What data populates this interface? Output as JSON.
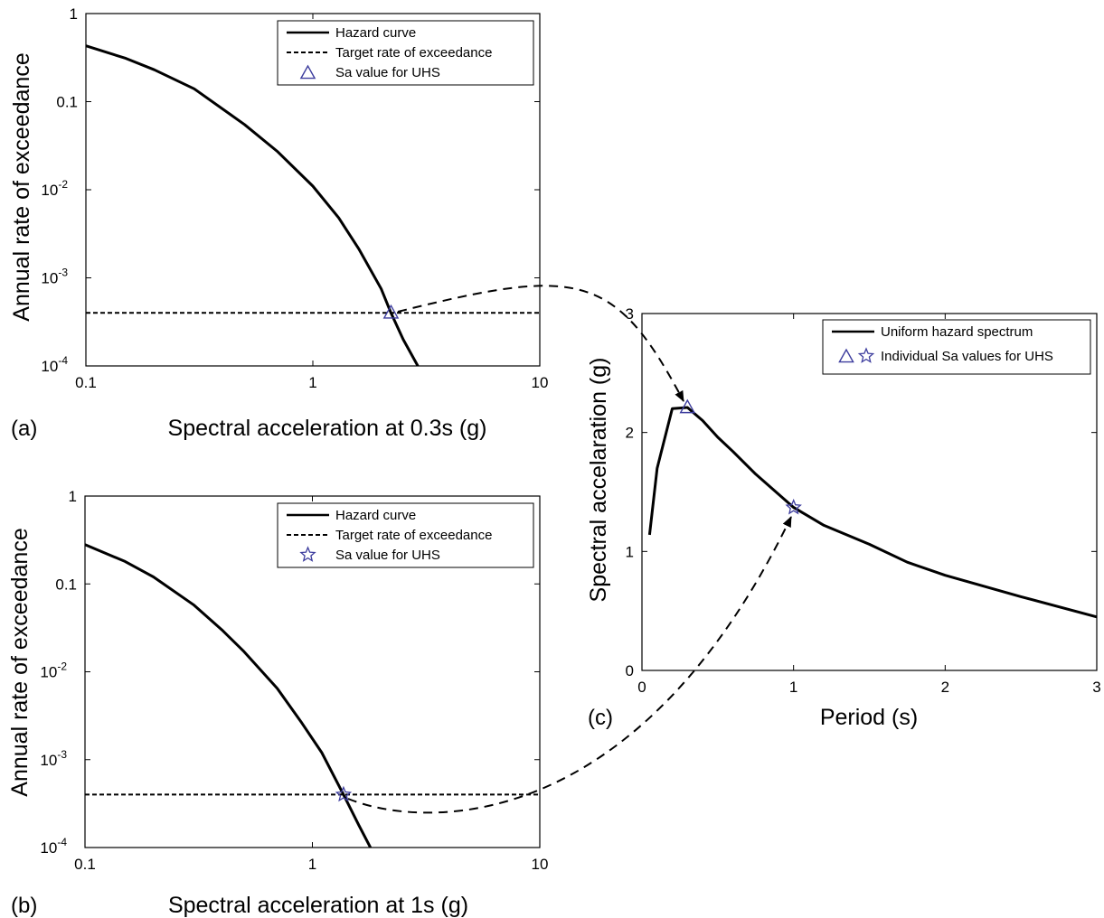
{
  "chart_data": [
    {
      "panel": "(a)",
      "type": "line",
      "xlabel": "Spectral acceleration at 0.3s (g)",
      "ylabel": "Annual rate of exceedance",
      "xscale": "log",
      "yscale": "log",
      "xlim": [
        0.1,
        10
      ],
      "ylim": [
        0.0001,
        1
      ],
      "x_ticks": [
        {
          "v": 0.1,
          "base": "0.1",
          "sup": ""
        },
        {
          "v": 1,
          "base": "1",
          "sup": ""
        },
        {
          "v": 10,
          "base": "10",
          "sup": ""
        }
      ],
      "y_ticks": [
        {
          "v": 1,
          "base": "1",
          "sup": ""
        },
        {
          "v": 0.1,
          "base": "0.1",
          "sup": ""
        },
        {
          "v": 0.01,
          "base": "10",
          "sup": "-2"
        },
        {
          "v": 0.001,
          "base": "10",
          "sup": "-3"
        },
        {
          "v": 0.0001,
          "base": "10",
          "sup": "-4"
        }
      ],
      "legend_position": "top-right",
      "legend": [
        {
          "label": "Hazard curve",
          "style": "solid"
        },
        {
          "label": "Target rate of exceedance",
          "style": "dashed"
        },
        {
          "label": "Sa value for UHS",
          "style": "triangle-marker"
        }
      ],
      "series": [
        {
          "name": "Hazard curve",
          "style": "solid",
          "x": [
            0.1,
            0.15,
            0.2,
            0.3,
            0.5,
            0.7,
            1.0,
            1.3,
            1.6,
            2.0,
            2.21,
            2.5,
            2.9
          ],
          "y": [
            0.43,
            0.31,
            0.23,
            0.14,
            0.055,
            0.027,
            0.011,
            0.0048,
            0.0021,
            0.00075,
            0.0004,
            0.0002,
            0.0001
          ]
        },
        {
          "name": "Target rate of exceedance",
          "style": "dashed",
          "x": [
            0.1,
            10
          ],
          "y": [
            0.0004,
            0.0004
          ]
        }
      ],
      "markers": [
        {
          "name": "Sa value for UHS",
          "shape": "triangle",
          "x": 2.21,
          "y": 0.0004,
          "color": "#3d3d9e"
        }
      ]
    },
    {
      "panel": "(b)",
      "type": "line",
      "xlabel": "Spectral acceleration at 1s (g)",
      "ylabel": "Annual rate of exceedance",
      "xscale": "log",
      "yscale": "log",
      "xlim": [
        0.1,
        10
      ],
      "ylim": [
        0.0001,
        1
      ],
      "x_ticks": [
        {
          "v": 0.1,
          "base": "0.1",
          "sup": ""
        },
        {
          "v": 1,
          "base": "1",
          "sup": ""
        },
        {
          "v": 10,
          "base": "10",
          "sup": ""
        }
      ],
      "y_ticks": [
        {
          "v": 1,
          "base": "1",
          "sup": ""
        },
        {
          "v": 0.1,
          "base": "0.1",
          "sup": ""
        },
        {
          "v": 0.01,
          "base": "10",
          "sup": "-2"
        },
        {
          "v": 0.001,
          "base": "10",
          "sup": "-3"
        },
        {
          "v": 0.0001,
          "base": "10",
          "sup": "-4"
        }
      ],
      "legend_position": "top-right",
      "legend": [
        {
          "label": "Hazard curve",
          "style": "solid"
        },
        {
          "label": "Target rate of exceedance",
          "style": "dashed"
        },
        {
          "label": "Sa value for UHS",
          "style": "star-marker"
        }
      ],
      "series": [
        {
          "name": "Hazard curve",
          "style": "solid",
          "x": [
            0.1,
            0.15,
            0.2,
            0.3,
            0.4,
            0.5,
            0.7,
            0.9,
            1.1,
            1.37,
            1.6,
            1.8
          ],
          "y": [
            0.28,
            0.18,
            0.12,
            0.058,
            0.03,
            0.017,
            0.0065,
            0.0026,
            0.0012,
            0.0004,
            0.00018,
            0.0001
          ]
        },
        {
          "name": "Target rate of exceedance",
          "style": "dashed",
          "x": [
            0.1,
            10
          ],
          "y": [
            0.0004,
            0.0004
          ]
        }
      ],
      "markers": [
        {
          "name": "Sa value for UHS",
          "shape": "star",
          "x": 1.37,
          "y": 0.0004,
          "color": "#3d3d9e"
        }
      ]
    },
    {
      "panel": "(c)",
      "type": "line",
      "xlabel": "Period (s)",
      "ylabel": "Spectral accelaration (g)",
      "xscale": "linear",
      "yscale": "linear",
      "xlim": [
        0,
        3
      ],
      "ylim": [
        0,
        3
      ],
      "x_ticks": [
        {
          "v": 0,
          "base": "0",
          "sup": ""
        },
        {
          "v": 1,
          "base": "1",
          "sup": ""
        },
        {
          "v": 2,
          "base": "2",
          "sup": ""
        },
        {
          "v": 3,
          "base": "3",
          "sup": ""
        }
      ],
      "y_ticks": [
        {
          "v": 0,
          "base": "0",
          "sup": ""
        },
        {
          "v": 1,
          "base": "1",
          "sup": ""
        },
        {
          "v": 2,
          "base": "2",
          "sup": ""
        },
        {
          "v": 3,
          "base": "3",
          "sup": ""
        }
      ],
      "legend_position": "top-right",
      "legend": [
        {
          "label": "Uniform hazard spectrum",
          "style": "solid"
        },
        {
          "label": "Individual Sa values for UHS",
          "style": "triangle-star-marker"
        }
      ],
      "series": [
        {
          "name": "Uniform hazard spectrum",
          "style": "solid",
          "x": [
            0.05,
            0.1,
            0.2,
            0.3,
            0.4,
            0.5,
            0.6,
            0.75,
            1.0,
            1.2,
            1.5,
            1.75,
            2.0,
            2.5,
            3.0
          ],
          "y": [
            1.14,
            1.7,
            2.2,
            2.21,
            2.1,
            1.96,
            1.84,
            1.65,
            1.37,
            1.22,
            1.06,
            0.91,
            0.8,
            0.62,
            0.45
          ]
        }
      ],
      "markers": [
        {
          "name": "Sa at 0.3s",
          "shape": "triangle",
          "x": 0.3,
          "y": 2.21,
          "color": "#3d3d9e"
        },
        {
          "name": "Sa at 1s",
          "shape": "star",
          "x": 1.0,
          "y": 1.37,
          "color": "#3d3d9e"
        }
      ]
    }
  ]
}
